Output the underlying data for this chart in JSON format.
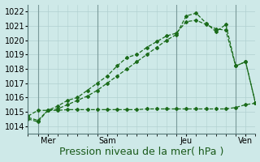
{
  "background_color": "#cee9e8",
  "grid_color": "#b0d0d0",
  "line_color": "#1a6b1a",
  "ylim": [
    1013.5,
    1022.5
  ],
  "yticks": [
    1014,
    1015,
    1016,
    1017,
    1018,
    1019,
    1020,
    1021,
    1022
  ],
  "xlabel": "Pression niveau de la mer( hPa )",
  "xlabel_fontsize": 9,
  "tick_fontsize": 7,
  "x_tick_positions": [
    2,
    8,
    16,
    22
  ],
  "x_tick_labels": [
    "Mer",
    "Sam",
    "Jeu",
    "Ven"
  ],
  "vline_positions": [
    1,
    7,
    15,
    21
  ],
  "series1_x": [
    0,
    1,
    2,
    3,
    4,
    5,
    6,
    7,
    8,
    9,
    10,
    11,
    12,
    13,
    14,
    15,
    16,
    17,
    18,
    19,
    20,
    21,
    22,
    23
  ],
  "series1_y": [
    1014.6,
    1014.4,
    1015.1,
    1015.4,
    1015.8,
    1016.0,
    1016.5,
    1017.0,
    1017.5,
    1018.2,
    1018.8,
    1019.0,
    1019.5,
    1019.9,
    1020.3,
    1020.5,
    1021.3,
    1021.4,
    1021.1,
    1020.8,
    1020.7,
    1018.2,
    1018.5,
    1015.6
  ],
  "series2_x": [
    0,
    1,
    2,
    3,
    4,
    5,
    6,
    7,
    8,
    9,
    10,
    11,
    12,
    13,
    14,
    15,
    16,
    17,
    18,
    19,
    20,
    21,
    22,
    23
  ],
  "series2_y": [
    1014.5,
    1014.3,
    1015.1,
    1015.2,
    1015.5,
    1015.8,
    1016.1,
    1016.5,
    1017.0,
    1017.5,
    1018.0,
    1018.5,
    1019.0,
    1019.5,
    1020.0,
    1020.4,
    1021.7,
    1021.9,
    1021.2,
    1020.6,
    1021.1,
    1018.2,
    1018.5,
    1015.6
  ],
  "series3_x": [
    0,
    1,
    2,
    3,
    4,
    5,
    6,
    7,
    8,
    9,
    10,
    11,
    12,
    13,
    14,
    15,
    16,
    17,
    18,
    19,
    20,
    21,
    22,
    23
  ],
  "series3_y": [
    1014.7,
    1015.1,
    1015.1,
    1015.1,
    1015.15,
    1015.15,
    1015.15,
    1015.15,
    1015.15,
    1015.15,
    1015.15,
    1015.15,
    1015.2,
    1015.2,
    1015.2,
    1015.2,
    1015.2,
    1015.2,
    1015.2,
    1015.2,
    1015.2,
    1015.3,
    1015.5,
    1015.6
  ]
}
